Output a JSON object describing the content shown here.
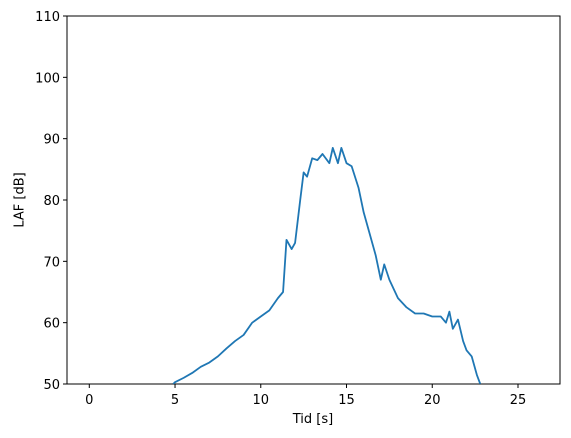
{
  "chart_data": {
    "type": "line",
    "xlabel": "Tid [s]",
    "ylabel": "LAF [dB]",
    "x": [
      4.9,
      5.0,
      5.5,
      6.0,
      6.5,
      7.0,
      7.5,
      8.0,
      8.5,
      9.0,
      9.5,
      10.0,
      10.5,
      11.0,
      11.3,
      11.5,
      11.8,
      12.0,
      12.3,
      12.5,
      12.7,
      13.0,
      13.3,
      13.6,
      14.0,
      14.2,
      14.5,
      14.7,
      15.0,
      15.3,
      15.7,
      16.0,
      16.3,
      16.7,
      17.0,
      17.2,
      17.5,
      18.0,
      18.5,
      19.0,
      19.5,
      20.0,
      20.5,
      20.8,
      21.0,
      21.2,
      21.5,
      21.8,
      22.0,
      22.3,
      22.6,
      22.8
    ],
    "values": [
      50.0,
      50.3,
      51.0,
      51.8,
      52.8,
      53.5,
      54.5,
      55.8,
      57.0,
      58.0,
      60.0,
      61.0,
      62.0,
      64.0,
      65.0,
      73.5,
      72.0,
      73.0,
      80.0,
      84.5,
      83.8,
      86.8,
      86.5,
      87.5,
      86.0,
      88.5,
      86.0,
      88.5,
      86.0,
      85.5,
      82.0,
      78.0,
      75.0,
      71.0,
      67.0,
      69.5,
      67.0,
      64.0,
      62.5,
      61.5,
      61.5,
      61.0,
      61.0,
      60.0,
      61.8,
      59.0,
      60.5,
      57.0,
      55.5,
      54.5,
      51.5,
      50.0
    ],
    "color": "#1f77b4",
    "xlim": [
      -1.3,
      27.45
    ],
    "xticks": [
      0,
      5,
      10,
      15,
      20,
      25
    ],
    "ylim": [
      50,
      110
    ],
    "yticks": [
      50,
      60,
      70,
      80,
      90,
      100,
      110
    ]
  }
}
